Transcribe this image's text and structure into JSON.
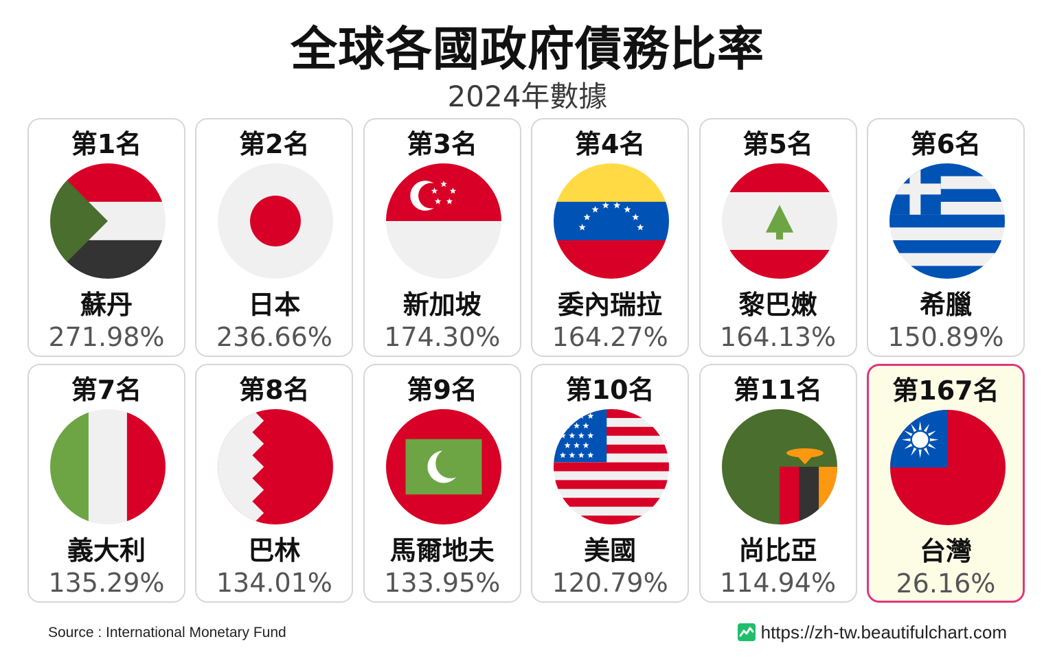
{
  "title": "全球各國政府債務比率",
  "subtitle": "2024年數據",
  "source": "Source : International Monetary Fund",
  "website": "https://zh-tw.beautifulchart.com",
  "colors": {
    "highlight_border": "#e0357f",
    "highlight_background": "#fdfde6",
    "card_border": "#d6d6d6",
    "logo": "#1fbf6a"
  },
  "chart_data": {
    "type": "table",
    "title": "全球各國政府債務比率",
    "subtitle": "2024年數據",
    "columns": [
      "rank",
      "country",
      "value"
    ],
    "rows": [
      {
        "rank": "第1名",
        "country": "蘇丹",
        "value": "271.98%",
        "flag_icon": "sudan-flag-icon",
        "highlight": false
      },
      {
        "rank": "第2名",
        "country": "日本",
        "value": "236.66%",
        "flag_icon": "japan-flag-icon",
        "highlight": false
      },
      {
        "rank": "第3名",
        "country": "新加坡",
        "value": "174.30%",
        "flag_icon": "singapore-flag-icon",
        "highlight": false
      },
      {
        "rank": "第4名",
        "country": "委內瑞拉",
        "value": "164.27%",
        "flag_icon": "venezuela-flag-icon",
        "highlight": false
      },
      {
        "rank": "第5名",
        "country": "黎巴嫩",
        "value": "164.13%",
        "flag_icon": "lebanon-flag-icon",
        "highlight": false
      },
      {
        "rank": "第6名",
        "country": "希臘",
        "value": "150.89%",
        "flag_icon": "greece-flag-icon",
        "highlight": false
      },
      {
        "rank": "第7名",
        "country": "義大利",
        "value": "135.29%",
        "flag_icon": "italy-flag-icon",
        "highlight": false
      },
      {
        "rank": "第8名",
        "country": "巴林",
        "value": "134.01%",
        "flag_icon": "bahrain-flag-icon",
        "highlight": false
      },
      {
        "rank": "第9名",
        "country": "馬爾地夫",
        "value": "133.95%",
        "flag_icon": "maldives-flag-icon",
        "highlight": false
      },
      {
        "rank": "第10名",
        "country": "美國",
        "value": "120.79%",
        "flag_icon": "usa-flag-icon",
        "highlight": false
      },
      {
        "rank": "第11名",
        "country": "尚比亞",
        "value": "114.94%",
        "flag_icon": "zambia-flag-icon",
        "highlight": false
      },
      {
        "rank": "第167名",
        "country": "台灣",
        "value": "26.16%",
        "flag_icon": "taiwan-flag-icon",
        "highlight": true
      }
    ]
  }
}
